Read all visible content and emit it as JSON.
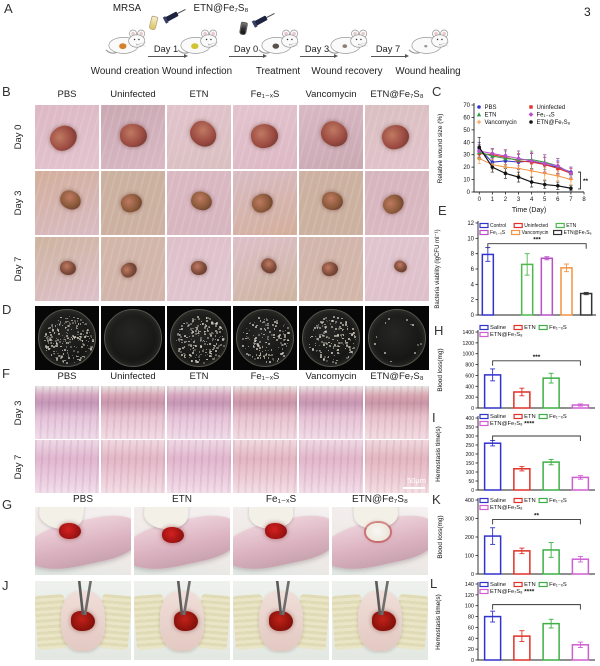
{
  "page_number": "3",
  "panels": {
    "a": "A",
    "b": "B",
    "c": "C",
    "d": "D",
    "e": "E",
    "f": "F",
    "g": "G",
    "h": "H",
    "i": "I",
    "j": "J",
    "k": "K",
    "l": "L"
  },
  "panel_a": {
    "reagent_labels": [
      "MRSA",
      "ETN@Fe₇S₈"
    ],
    "arrow_labels": [
      "Day 1",
      "Day 0",
      "Day 3",
      "Day 7"
    ],
    "step_captions": [
      "Wound creation",
      "Wound infection",
      "Treatment",
      "Wound recovery",
      "Wound healing"
    ]
  },
  "panel_b": {
    "columns": [
      "PBS",
      "Uninfected",
      "ETN",
      "Fe₁₋ₓS",
      "Vancomycin",
      "ETN@Fe₇S₈"
    ],
    "row_labels": [
      "Day 0",
      "Day 3",
      "Day 7"
    ]
  },
  "panel_d": {
    "colony_counts": [
      210,
      0,
      200,
      150,
      160,
      12
    ]
  },
  "panel_f": {
    "columns": [
      "PBS",
      "Uninfected",
      "ETN",
      "Fe₁₋ₓS",
      "Vancomycin",
      "ETN@Fe₇S₈"
    ],
    "row_labels": [
      "Day 3",
      "Day 7"
    ],
    "scale_bar": "50μm"
  },
  "panel_g": {
    "columns": [
      "PBS",
      "ETN",
      "Fe₁₋ₓS",
      "ETN@Fe₇S₈"
    ]
  },
  "chart_data": [
    {
      "id": "C",
      "type": "line",
      "ylabel": "Relative wound size (%)",
      "xlabel": "Time (Day)",
      "ylim": [
        0,
        70
      ],
      "ystep": 10,
      "xticks": [
        0,
        1,
        2,
        3,
        4,
        5,
        6,
        7,
        8
      ],
      "x": [
        0,
        1,
        2,
        3,
        4,
        5,
        6,
        7
      ],
      "sig": "**",
      "legend_cols": [
        [
          0,
          2,
          4
        ],
        [
          1,
          3,
          5
        ]
      ],
      "series": [
        {
          "name": "PBS",
          "color": "#3232cd",
          "marker": "circle",
          "values": [
            35,
            24,
            25,
            24,
            25,
            22,
            20,
            16
          ],
          "err": [
            5,
            4,
            5,
            6,
            6,
            6,
            5,
            4
          ]
        },
        {
          "name": "Uninfected",
          "color": "#e03028",
          "marker": "square",
          "values": [
            31,
            30,
            28,
            25,
            24,
            22,
            19,
            15
          ],
          "err": [
            4,
            5,
            6,
            6,
            7,
            6,
            5,
            4
          ]
        },
        {
          "name": "ETN",
          "color": "#2e9e3e",
          "marker": "triangle",
          "values": [
            32,
            29,
            27,
            26,
            26,
            24,
            21,
            15
          ],
          "err": [
            6,
            5,
            6,
            7,
            7,
            6,
            6,
            5
          ]
        },
        {
          "name": "Fe₁₋ₓS",
          "color": "#b94fc9",
          "marker": "diamond",
          "values": [
            33,
            31,
            29,
            27,
            25,
            23,
            21,
            15
          ],
          "err": [
            5,
            4,
            5,
            6,
            7,
            7,
            6,
            5
          ]
        },
        {
          "name": "Vancomycin",
          "color": "#f29440",
          "marker": "plus",
          "values": [
            27,
            22,
            20,
            19,
            17,
            15,
            13,
            10
          ],
          "err": [
            4,
            4,
            4,
            5,
            5,
            5,
            4,
            4
          ]
        },
        {
          "name": "ETN@Fe₇S₈",
          "color": "#141414",
          "marker": "circle",
          "values": [
            36,
            20,
            15,
            12,
            8,
            6,
            5,
            3
          ],
          "err": [
            8,
            4,
            4,
            4,
            4,
            3,
            3,
            2
          ]
        }
      ]
    },
    {
      "id": "E",
      "type": "bar",
      "ylabel": "Bacteria viability (lgCFU ml⁻¹)",
      "ylim": [
        0,
        12
      ],
      "ystep": 2,
      "categories": [
        "Control",
        "Uninfected",
        "ETN",
        "Fe₁₋ₓS",
        "Vancomycin",
        "ETN@Fe₇S₈"
      ],
      "values": [
        7.9,
        0,
        6.6,
        7.4,
        6.15,
        2.8
      ],
      "errors": [
        0.9,
        0,
        1.4,
        0.2,
        0.5,
        0.15
      ],
      "colors": [
        "#3232cd",
        "#e03028",
        "#4db84d",
        "#b94fc9",
        "#f29440",
        "#333333"
      ],
      "sig": {
        "label": "***",
        "from": 0,
        "to": 5,
        "y": 9.3
      },
      "legend_rows": [
        [
          0,
          1,
          2
        ],
        [
          3,
          4,
          5
        ]
      ]
    },
    {
      "id": "H",
      "type": "bar",
      "ylabel": "Blood loss(mg)",
      "ylim": [
        0,
        1400
      ],
      "ystep": 200,
      "categories": [
        "Saline",
        "ETN",
        "Fe₁₋ₓS",
        "ETN@Fe₇S₈"
      ],
      "values": [
        610,
        295,
        550,
        55
      ],
      "errors": [
        110,
        70,
        90,
        20
      ],
      "colors": [
        "#3232cd",
        "#e03028",
        "#3cb044",
        "#cf5fd3"
      ],
      "sig": {
        "label": "***",
        "from": 0,
        "to": 3,
        "y": 870
      },
      "legend_rows": [
        [
          0,
          1,
          2
        ],
        [
          3
        ]
      ]
    },
    {
      "id": "I",
      "type": "bar",
      "ylabel": "Hemostasis time(s)",
      "ylim": [
        0,
        400
      ],
      "ystep": 50,
      "categories": [
        "Saline",
        "ETN",
        "Fe₁₋ₓS",
        "ETN@Fe₇S₈"
      ],
      "values": [
        260,
        118,
        155,
        70
      ],
      "errors": [
        15,
        12,
        15,
        10
      ],
      "colors": [
        "#3232cd",
        "#e03028",
        "#3cb044",
        "#cf5fd3"
      ],
      "sig": {
        "label": "****",
        "from": 0,
        "to": 3,
        "y": 300,
        "in_legend": true
      },
      "legend_rows": [
        [
          0,
          1,
          2
        ],
        [
          3
        ]
      ]
    },
    {
      "id": "K",
      "type": "bar",
      "ylabel": "Blood loss(mg)",
      "ylim": [
        0,
        400
      ],
      "ystep": 100,
      "categories": [
        "Saline",
        "ETN",
        "Fe₁₋ₓS",
        "ETN@Fe₇S₈"
      ],
      "values": [
        205,
        125,
        130,
        80
      ],
      "errors": [
        45,
        15,
        40,
        15
      ],
      "colors": [
        "#3232cd",
        "#e03028",
        "#3cb044",
        "#cf5fd3"
      ],
      "sig": {
        "label": "**",
        "from": 0,
        "to": 3,
        "y": 295
      },
      "legend_rows": [
        [
          0,
          1,
          2
        ],
        [
          3
        ]
      ]
    },
    {
      "id": "L",
      "type": "bar",
      "ylabel": "Hemostasis time(s)",
      "ylim": [
        0,
        140
      ],
      "ystep": 20,
      "categories": [
        "Saline",
        "ETN",
        "Fe₁₋ₓS",
        "ETN@Fe₇S₈"
      ],
      "values": [
        80,
        44,
        67,
        28
      ],
      "errors": [
        10,
        10,
        8,
        5
      ],
      "colors": [
        "#3232cd",
        "#e03028",
        "#3cb044",
        "#cf5fd3"
      ],
      "sig": {
        "label": "****",
        "from": 0,
        "to": 3,
        "y": 102,
        "in_legend": true
      },
      "legend_rows": [
        [
          0,
          1,
          2
        ],
        [
          3
        ]
      ]
    }
  ]
}
